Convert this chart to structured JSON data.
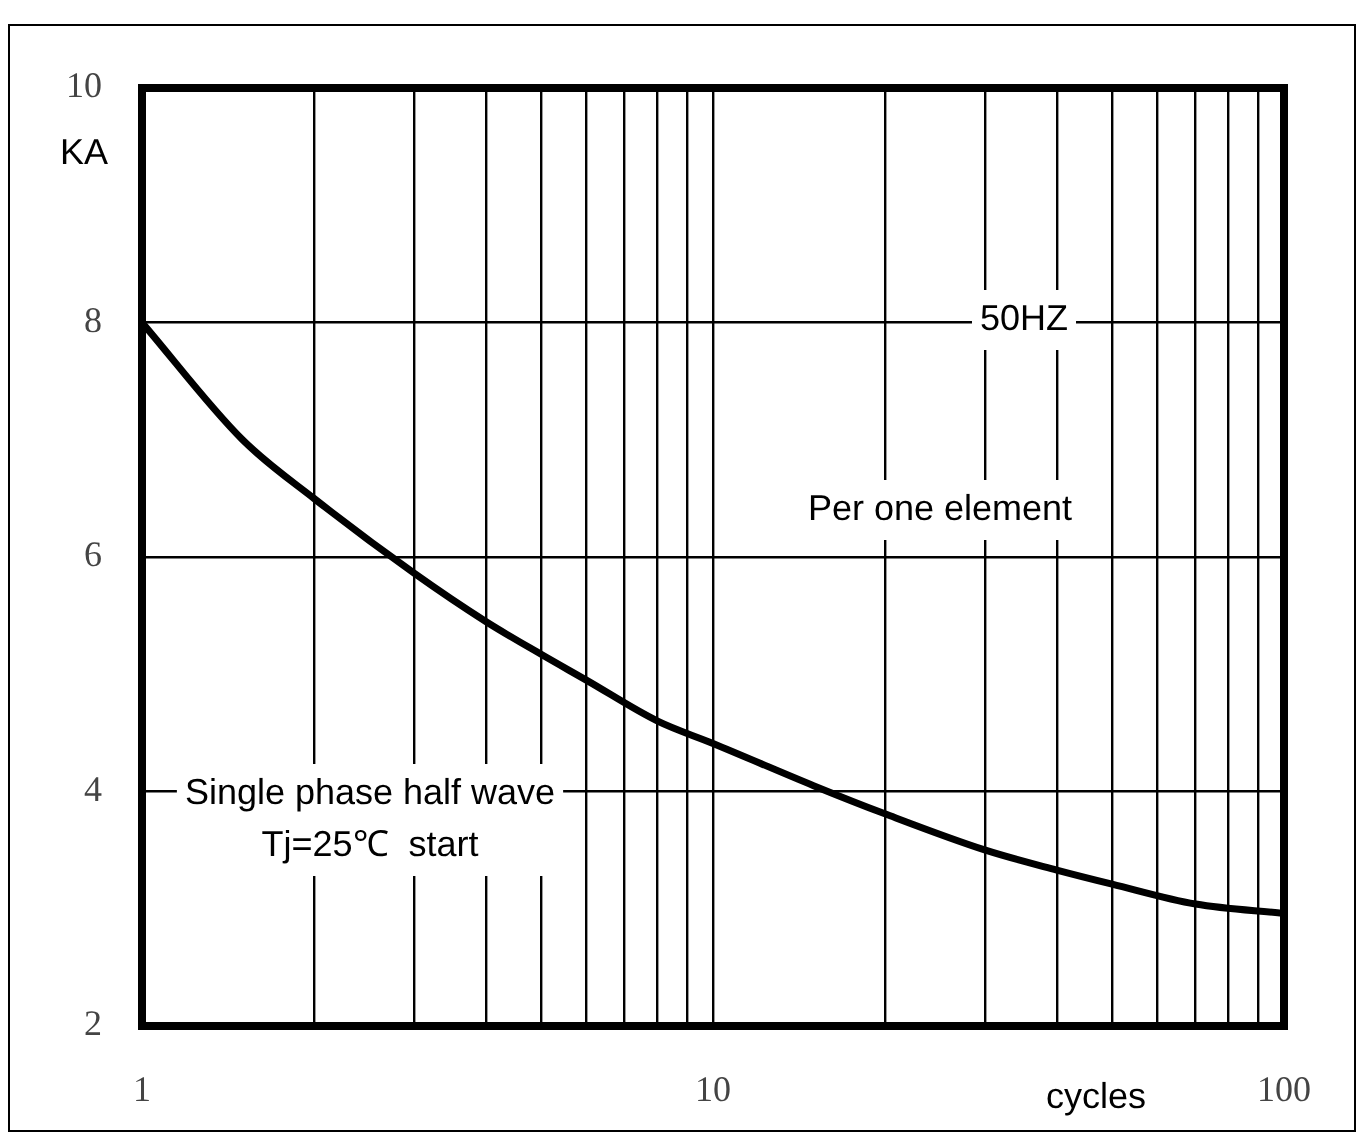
{
  "chart_data": {
    "type": "line",
    "xlabel": "cycles",
    "ylabel": "KA",
    "x": [
      1,
      1.5,
      2,
      3,
      4,
      5,
      6,
      8,
      10,
      15,
      20,
      30,
      40,
      50,
      70,
      100
    ],
    "series": [
      {
        "color": "#000000",
        "values": [
          8,
          7.0,
          6.5,
          5.86,
          5.45,
          5.17,
          4.95,
          4.6,
          4.41,
          4.05,
          3.81,
          3.5,
          3.33,
          3.21,
          3.04,
          2.96
        ]
      }
    ],
    "log": "x",
    "xlim": [
      1,
      100
    ],
    "ylim": [
      2,
      10
    ],
    "xticks": [
      1,
      {
        "value": 2,
        "label": null
      },
      {
        "value": 3,
        "label": null
      },
      {
        "value": 4,
        "label": null
      },
      {
        "value": 5,
        "label": null
      },
      {
        "value": 6,
        "label": null
      },
      {
        "value": 7,
        "label": null
      },
      {
        "value": 8,
        "label": null
      },
      {
        "value": 9,
        "label": null
      },
      10,
      {
        "value": 20,
        "label": null
      },
      {
        "value": 30,
        "label": null
      },
      {
        "value": 40,
        "label": null
      },
      {
        "value": 50,
        "label": null
      },
      {
        "value": 60,
        "label": null
      },
      {
        "value": 70,
        "label": null
      },
      {
        "value": 80,
        "label": null
      },
      {
        "value": 90,
        "label": null
      },
      100
    ],
    "yticks": [
      2,
      4,
      6,
      8,
      10
    ],
    "grid": true,
    "legend": false,
    "marker": "none",
    "line_style": "solid",
    "annotations": [
      "50HZ",
      "Per one element",
      "Single phase half wave\nTj=25℃  start"
    ]
  }
}
